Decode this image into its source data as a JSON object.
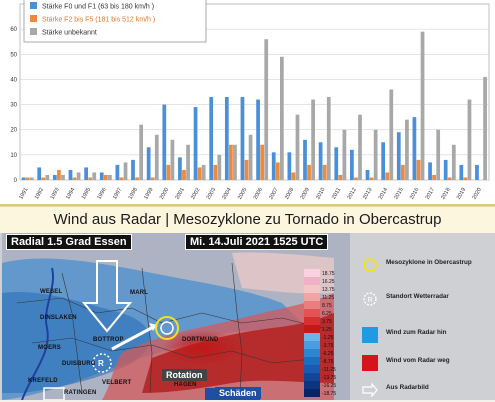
{
  "chart_data": {
    "type": "bar",
    "categories": [
      "1991",
      "1992",
      "1993",
      "1994",
      "1995",
      "1996",
      "1997",
      "1998",
      "1999",
      "2000",
      "2001",
      "2002",
      "2003",
      "2004",
      "2005",
      "2006",
      "2007",
      "2008",
      "2009",
      "2010",
      "2011",
      "2012",
      "2013",
      "2014",
      "2015",
      "2016",
      "2017",
      "2018",
      "2019",
      "2020"
    ],
    "series": [
      {
        "name": "Stärke F0 und F1 (63 bis 180 km/h )",
        "color": "#4a90d9",
        "values": [
          1,
          5,
          2,
          4,
          5,
          3,
          6,
          8,
          13,
          30,
          9,
          29,
          33,
          33,
          33,
          32,
          11,
          11,
          16,
          15,
          13,
          12,
          4,
          15,
          19,
          25,
          7,
          8,
          6,
          6
        ]
      },
      {
        "name": "Stärke F2 bis F5  (181 bis 512 km/h )",
        "color": "#ee8a3c",
        "values": [
          1,
          1,
          4,
          1,
          1,
          2,
          1,
          1,
          1,
          6,
          4,
          5,
          6,
          14,
          8,
          14,
          7,
          3,
          6,
          6,
          2,
          1,
          1,
          3,
          6,
          8,
          2,
          1,
          1,
          0
        ]
      },
      {
        "name": "Stärke unbekannt",
        "color": "#a8a8a8",
        "values": [
          1,
          2,
          2,
          3,
          3,
          2,
          7,
          22,
          18,
          16,
          14,
          6,
          10,
          14,
          18,
          56,
          49,
          26,
          32,
          33,
          20,
          26,
          20,
          36,
          24,
          59,
          20,
          14,
          32,
          41
        ]
      }
    ],
    "ylim": [
      0,
      70
    ],
    "yticks": [
      0,
      10,
      20,
      30,
      40,
      50,
      60
    ],
    "grid": true,
    "legend": "top-left"
  },
  "banner": {
    "title": "Wind aus Radar | Mesozyklone zu Tornado in Obercastrup"
  },
  "radar": {
    "station_label": "Radial 1.5 Grad Essen",
    "timestamp": "Mi. 14.Juli 2021 1525 UTC",
    "cities": [
      "WESEL",
      "DINSLAKEN",
      "MOERS",
      "DUISBURG",
      "KREFELD",
      "RATINGEN",
      "MARL",
      "BOTTROP",
      "DORTMUND",
      "VELBERT",
      "HAGEN"
    ],
    "station_marker": "R",
    "labels": {
      "rotation": "Rotation",
      "damage": "Schäden"
    },
    "scale_values": [
      "18.75",
      "16.25",
      "13.75",
      "11.25",
      "8.75",
      "6.25",
      "3.75",
      "1.25",
      "-1.25",
      "-3.75",
      "-6.25",
      "-8.75",
      "-11.25",
      "-13.75",
      "-16.25",
      "-18.75"
    ]
  },
  "legend": {
    "items": [
      {
        "label": "Mesozyklone in Obercastrup",
        "icon": "yellow-circle-icon"
      },
      {
        "label": "Standort Wetterradar",
        "icon": "radar-station-icon"
      },
      {
        "label": "Wind zum Radar hin",
        "icon": "blue-square-icon",
        "color": "#1e9be3"
      },
      {
        "label": "Wind vom Radar weg",
        "icon": "red-square-icon",
        "color": "#d6151b"
      },
      {
        "label": "Aus Radarbild",
        "icon": "arrow-icon"
      }
    ]
  }
}
